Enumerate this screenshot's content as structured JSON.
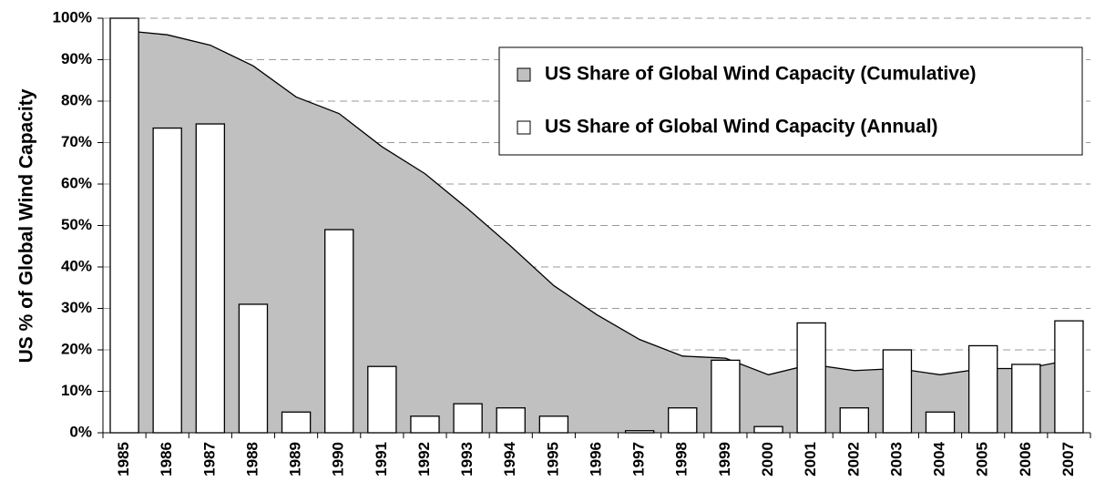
{
  "chart_data": {
    "type": "combo",
    "y_label": "US % of Global Wind Capacity",
    "categories": [
      "1985",
      "1986",
      "1987",
      "1988",
      "1989",
      "1990",
      "1991",
      "1992",
      "1993",
      "1994",
      "1995",
      "1996",
      "1997",
      "1998",
      "1999",
      "2000",
      "2001",
      "2002",
      "2003",
      "2004",
      "2005",
      "2006",
      "2007"
    ],
    "series": [
      {
        "name": "US Share of Global Wind Capacity (Cumulative)",
        "type": "area",
        "color": "#c0c0c0",
        "values": [
          97,
          96,
          93.5,
          88.5,
          81,
          77,
          69,
          62.5,
          54,
          45,
          35.5,
          28.5,
          22.5,
          18.5,
          18,
          14,
          16.5,
          15,
          15.5,
          14,
          15.5,
          15.5,
          17.5
        ]
      },
      {
        "name": "US Share of Global Wind Capacity (Annual)",
        "type": "bar",
        "color": "#ffffff",
        "values": [
          100,
          73.5,
          74.5,
          31,
          5,
          49,
          16,
          4,
          7,
          6,
          4,
          0,
          0.5,
          6,
          17.5,
          1.5,
          26.5,
          6,
          20,
          5,
          21,
          16.5,
          27
        ]
      }
    ],
    "ylim": [
      0,
      100
    ],
    "yticks": [
      {
        "value": 0,
        "label": "0%"
      },
      {
        "value": 10,
        "label": "10%"
      },
      {
        "value": 20,
        "label": "20%"
      },
      {
        "value": 30,
        "label": "30%"
      },
      {
        "value": 40,
        "label": "40%"
      },
      {
        "value": 50,
        "label": "50%"
      },
      {
        "value": 60,
        "label": "60%"
      },
      {
        "value": 70,
        "label": "70%"
      },
      {
        "value": 80,
        "label": "80%"
      },
      {
        "value": 90,
        "label": "90%"
      },
      {
        "value": 100,
        "label": "100%"
      }
    ],
    "grid": true,
    "legend": "upper right"
  }
}
